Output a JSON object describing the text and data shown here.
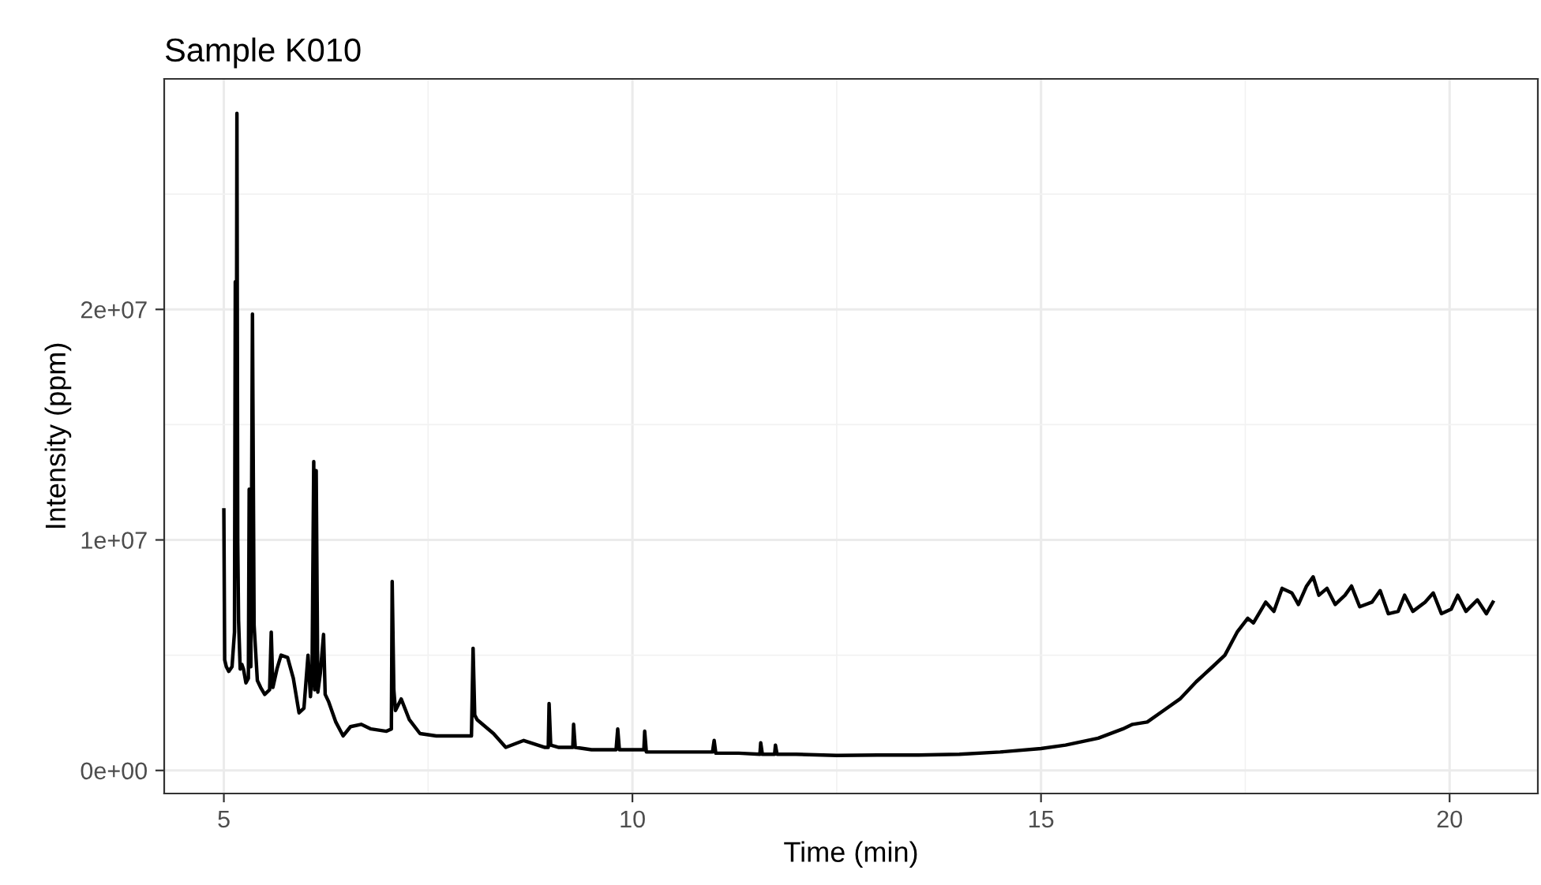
{
  "chart_data": {
    "type": "line",
    "title": "Sample K010",
    "xlabel": "Time (min)",
    "ylabel": "Intensity (ppm)",
    "xlim": [
      4.27,
      21.08
    ],
    "ylim": [
      -1000000,
      30000000
    ],
    "xticks": [
      {
        "value": 5,
        "label": "5"
      },
      {
        "value": 7.5,
        "label": null
      },
      {
        "value": 10,
        "label": "10"
      },
      {
        "value": 12.5,
        "label": null
      },
      {
        "value": 15,
        "label": "15"
      },
      {
        "value": 17.5,
        "label": null
      },
      {
        "value": 20,
        "label": "20"
      }
    ],
    "yticks": [
      {
        "value": 0,
        "label": "0e+00"
      },
      {
        "value": 5000000,
        "label": null
      },
      {
        "value": 10000000,
        "label": "1e+07"
      },
      {
        "value": 15000000,
        "label": null
      },
      {
        "value": 20000000,
        "label": "2e+07"
      },
      {
        "value": 25000000,
        "label": null
      }
    ],
    "grid": true,
    "legend": false,
    "marker": "none",
    "line_style": "solid",
    "series": [
      {
        "color": "#000000",
        "x": [
          5.0,
          5.01,
          5.03,
          5.06,
          5.1,
          5.13,
          5.14,
          5.15,
          5.16,
          5.17,
          5.18,
          5.2,
          5.22,
          5.24,
          5.27,
          5.3,
          5.31,
          5.33,
          5.35,
          5.37,
          5.41,
          5.45,
          5.5,
          5.56,
          5.58,
          5.6,
          5.65,
          5.7,
          5.78,
          5.85,
          5.92,
          5.98,
          6.03,
          6.06,
          6.08,
          6.1,
          6.11,
          6.13,
          6.15,
          6.18,
          6.22,
          6.24,
          6.28,
          6.37,
          6.46,
          6.55,
          6.68,
          6.8,
          6.99,
          7.05,
          7.06,
          7.08,
          7.1,
          7.17,
          7.27,
          7.4,
          7.6,
          7.95,
          8.03,
          8.05,
          8.07,
          8.1,
          8.3,
          8.45,
          8.67,
          8.93,
          8.97,
          8.98,
          9.0,
          9.1,
          9.27,
          9.28,
          9.3,
          9.5,
          9.8,
          9.82,
          9.84,
          10.0,
          10.14,
          10.15,
          10.17,
          10.5,
          10.98,
          11.0,
          11.02,
          11.3,
          11.56,
          11.57,
          11.59,
          11.74,
          11.75,
          11.77,
          12.0,
          12.5,
          13.0,
          13.5,
          14.0,
          14.5,
          15.0,
          15.3,
          15.7,
          16.0,
          16.12,
          16.3,
          16.5,
          16.7,
          16.9,
          17.1,
          17.25,
          17.4,
          17.53,
          17.6,
          17.75,
          17.85,
          17.95,
          18.07,
          18.15,
          18.25,
          18.33,
          18.4,
          18.5,
          18.6,
          18.72,
          18.8,
          18.9,
          19.05,
          19.15,
          19.25,
          19.37,
          19.45,
          19.55,
          19.7,
          19.8,
          19.9,
          20.02,
          20.1,
          20.2,
          20.34,
          20.45,
          20.53
        ],
        "values": [
          11300000,
          4800000,
          4500000,
          4300000,
          4500000,
          6000000,
          21200000,
          9000000,
          28500000,
          9900000,
          6500000,
          4400000,
          4600000,
          4400000,
          3800000,
          4000000,
          12200000,
          4500000,
          19800000,
          6300000,
          3900000,
          3600000,
          3300000,
          3500000,
          6000000,
          3600000,
          4400000,
          5000000,
          4900000,
          4000000,
          2500000,
          2700000,
          5000000,
          3200000,
          4500000,
          13400000,
          3500000,
          13000000,
          3400000,
          4200000,
          5900000,
          3300000,
          3000000,
          2100000,
          1500000,
          1900000,
          2000000,
          1800000,
          1700000,
          1800000,
          8200000,
          3500000,
          2600000,
          3100000,
          2200000,
          1600000,
          1500000,
          1500000,
          1500000,
          5300000,
          2400000,
          2200000,
          1600000,
          1000000,
          1300000,
          1000000,
          1000000,
          2900000,
          1100000,
          1000000,
          1000000,
          2000000,
          1000000,
          900000,
          900000,
          1800000,
          900000,
          900000,
          900000,
          1700000,
          800000,
          800000,
          800000,
          1300000,
          750000,
          750000,
          700000,
          1200000,
          700000,
          700000,
          1100000,
          700000,
          700000,
          650000,
          670000,
          670000,
          700000,
          800000,
          950000,
          1100000,
          1400000,
          1800000,
          2000000,
          2100000,
          2600000,
          3100000,
          3850000,
          4500000,
          5000000,
          6000000,
          6600000,
          6400000,
          7300000,
          6900000,
          7900000,
          7700000,
          7200000,
          8000000,
          8400000,
          7600000,
          7900000,
          7200000,
          7600000,
          8000000,
          7100000,
          7300000,
          7800000,
          6800000,
          6900000,
          7600000,
          6900000,
          7300000,
          7700000,
          6800000,
          7000000,
          7600000,
          6900000,
          7400000,
          6800000,
          7300000
        ]
      }
    ]
  }
}
